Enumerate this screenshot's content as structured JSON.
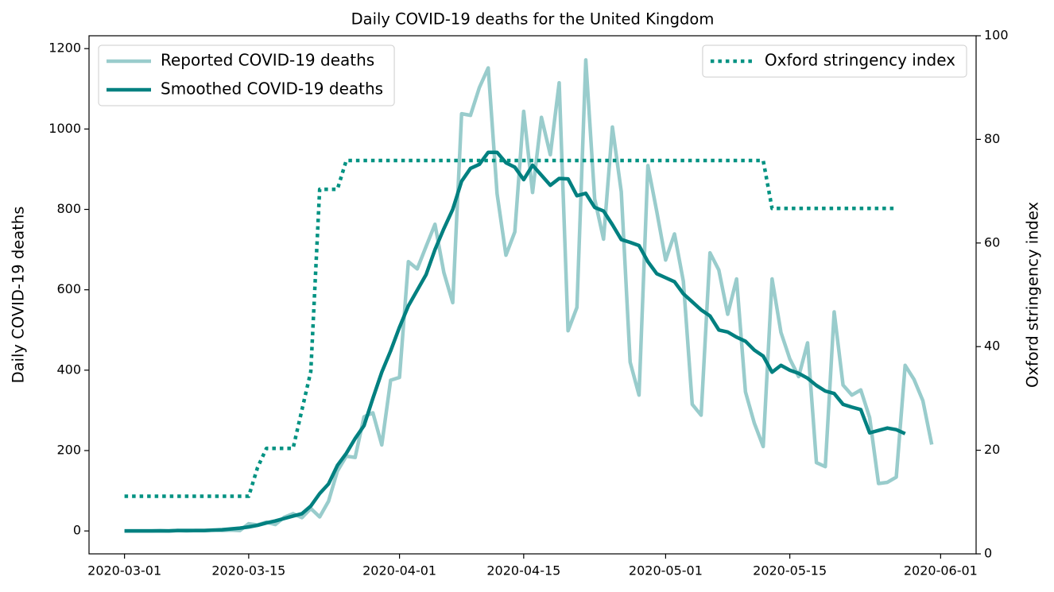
{
  "chart_data": {
    "type": "line",
    "title": "Daily COVID-19 deaths for the United Kingdom",
    "ylabel": "Daily COVID-19 deaths",
    "y2label": "Oxford stringency index",
    "x": [
      "2020-03-01",
      "2020-03-02",
      "2020-03-03",
      "2020-03-04",
      "2020-03-05",
      "2020-03-06",
      "2020-03-07",
      "2020-03-08",
      "2020-03-09",
      "2020-03-10",
      "2020-03-11",
      "2020-03-12",
      "2020-03-13",
      "2020-03-14",
      "2020-03-15",
      "2020-03-16",
      "2020-03-17",
      "2020-03-18",
      "2020-03-19",
      "2020-03-20",
      "2020-03-21",
      "2020-03-22",
      "2020-03-23",
      "2020-03-24",
      "2020-03-25",
      "2020-03-26",
      "2020-03-27",
      "2020-03-28",
      "2020-03-29",
      "2020-03-30",
      "2020-03-31",
      "2020-04-01",
      "2020-04-02",
      "2020-04-03",
      "2020-04-04",
      "2020-04-05",
      "2020-04-06",
      "2020-04-07",
      "2020-04-08",
      "2020-04-09",
      "2020-04-10",
      "2020-04-11",
      "2020-04-12",
      "2020-04-13",
      "2020-04-14",
      "2020-04-15",
      "2020-04-16",
      "2020-04-17",
      "2020-04-18",
      "2020-04-19",
      "2020-04-20",
      "2020-04-21",
      "2020-04-22",
      "2020-04-23",
      "2020-04-24",
      "2020-04-25",
      "2020-04-26",
      "2020-04-27",
      "2020-04-28",
      "2020-04-29",
      "2020-04-30",
      "2020-05-01",
      "2020-05-02",
      "2020-05-03",
      "2020-05-04",
      "2020-05-05",
      "2020-05-06",
      "2020-05-07",
      "2020-05-08",
      "2020-05-09",
      "2020-05-10",
      "2020-05-11",
      "2020-05-12",
      "2020-05-13",
      "2020-05-14",
      "2020-05-15",
      "2020-05-16",
      "2020-05-17",
      "2020-05-18",
      "2020-05-19",
      "2020-05-20",
      "2020-05-21",
      "2020-05-22",
      "2020-05-23",
      "2020-05-24",
      "2020-05-25",
      "2020-05-26",
      "2020-05-27",
      "2020-05-28",
      "2020-05-29",
      "2020-05-30",
      "2020-05-31"
    ],
    "series": [
      {
        "name": "Reported COVID-19 deaths",
        "color": "#99cccc",
        "style": "solid",
        "axis": "y",
        "legend": "upper left",
        "values": [
          0,
          0,
          0,
          0,
          1,
          0,
          1,
          0,
          1,
          1,
          2,
          1,
          2,
          1,
          18,
          15,
          22,
          16,
          34,
          43,
          33,
          56,
          35,
          74,
          149,
          186,
          183,
          284,
          294,
          214,
          375,
          382,
          670,
          652,
          708,
          763,
          643,
          568,
          1038,
          1034,
          1103,
          1152,
          839,
          686,
          744,
          1044,
          842,
          1029,
          936,
          1115,
          498,
          556,
          1172,
          826,
          726,
          1005,
          844,
          420,
          338,
          909,
          795,
          674,
          739,
          621,
          315,
          288,
          692,
          649,
          539,
          627,
          346,
          268,
          210,
          627,
          494,
          428,
          384,
          468,
          170,
          160,
          545,
          363,
          338,
          351,
          282,
          118,
          121,
          134,
          412,
          377,
          324,
          215
        ]
      },
      {
        "name": "Smoothed COVID-19 deaths",
        "color": "#008080",
        "style": "solid",
        "axis": "y",
        "legend": "upper left",
        "values": [
          0,
          0,
          0,
          0,
          0,
          0,
          1,
          1,
          1,
          1,
          2,
          3,
          5,
          7,
          10,
          14,
          20,
          25,
          31,
          37,
          43,
          62,
          93,
          117,
          163,
          193,
          230,
          262,
          330,
          395,
          448,
          507,
          560,
          599,
          638,
          700,
          752,
          800,
          870,
          902,
          912,
          942,
          942,
          916,
          905,
          874,
          910,
          885,
          860,
          877,
          876,
          834,
          840,
          805,
          796,
          762,
          725,
          718,
          710,
          670,
          640,
          630,
          620,
          590,
          570,
          550,
          535,
          500,
          495,
          482,
          472,
          450,
          435,
          395,
          412,
          400,
          392,
          380,
          362,
          348,
          342,
          315,
          308,
          302,
          244,
          250,
          256,
          252,
          242,
          null,
          null,
          null
        ]
      },
      {
        "name": "Oxford stringency index",
        "color": "#009282",
        "style": "dotted",
        "axis": "y2",
        "legend": "upper right",
        "values": [
          11.11,
          11.11,
          11.11,
          11.11,
          11.11,
          11.11,
          11.11,
          11.11,
          11.11,
          11.11,
          11.11,
          11.11,
          11.11,
          11.11,
          11.11,
          16.67,
          20.37,
          20.37,
          20.37,
          20.37,
          27.78,
          35.19,
          70.37,
          70.37,
          70.37,
          75.93,
          75.93,
          75.93,
          75.93,
          75.93,
          75.93,
          75.93,
          75.93,
          75.93,
          75.93,
          75.93,
          75.93,
          75.93,
          75.93,
          75.93,
          75.93,
          75.93,
          75.93,
          75.93,
          75.93,
          75.93,
          75.93,
          75.93,
          75.93,
          75.93,
          75.93,
          75.93,
          75.93,
          75.93,
          75.93,
          75.93,
          75.93,
          75.93,
          75.93,
          75.93,
          75.93,
          75.93,
          75.93,
          75.93,
          75.93,
          75.93,
          75.93,
          75.93,
          75.93,
          75.93,
          75.93,
          75.93,
          75.93,
          66.67,
          66.67,
          66.67,
          66.67,
          66.67,
          66.67,
          66.67,
          66.67,
          66.67,
          66.67,
          66.67,
          66.67,
          66.67,
          66.67,
          66.67,
          null,
          null,
          null,
          null
        ]
      }
    ],
    "xlim": [
      "2020-02-26",
      "2020-06-05"
    ],
    "xticks": [
      "2020-03-01",
      "2020-03-15",
      "2020-04-01",
      "2020-04-15",
      "2020-05-01",
      "2020-05-15",
      "2020-06-01"
    ],
    "ylim": [
      -57,
      1232
    ],
    "yticks": [
      0,
      200,
      400,
      600,
      800,
      1000,
      1200
    ],
    "y2lim": [
      0,
      100
    ],
    "y2ticks": [
      0,
      20,
      40,
      60,
      80,
      100
    ],
    "grid": false
  }
}
